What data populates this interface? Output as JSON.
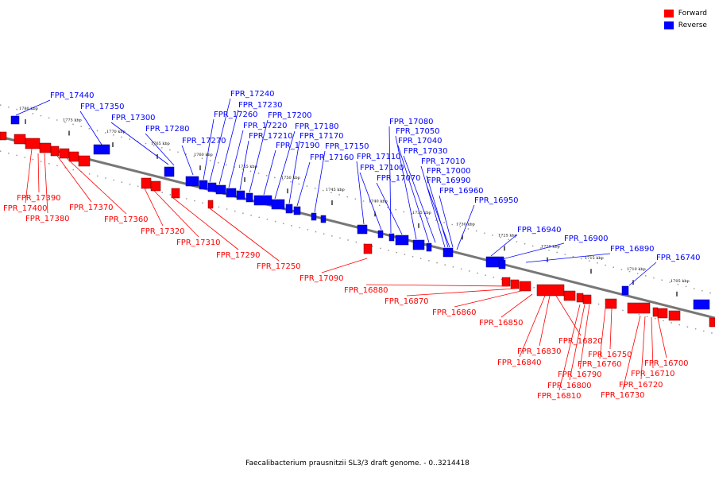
{
  "legend": {
    "forward": {
      "label": "Forward",
      "color": "#ff0000"
    },
    "reverse": {
      "label": "Reverse",
      "color": "#0000ff"
    }
  },
  "caption": "Faecalibacterium prausnitzii SL3/3 draft genome. - 0..3214418",
  "ticks": [
    {
      "label": "1780 kbp"
    },
    {
      "label": "1775 kbp"
    },
    {
      "label": "1770 kbp"
    },
    {
      "label": "1765 kbp"
    },
    {
      "label": "1760 kbp"
    },
    {
      "label": "1755 kbp"
    },
    {
      "label": "1750 kbp"
    },
    {
      "label": "1745 kbp"
    },
    {
      "label": "1740 kbp"
    },
    {
      "label": "1735 kbp"
    },
    {
      "label": "1730 kbp"
    },
    {
      "label": "1725 kbp"
    },
    {
      "label": "1720 kbp"
    },
    {
      "label": "1715 kbp"
    },
    {
      "label": "1710 kbp"
    },
    {
      "label": "1705 kbp"
    }
  ],
  "reverse_genes": [
    "FPR_17440",
    "FPR_17350",
    "FPR_17300",
    "FPR_17280",
    "FPR_17270",
    "FPR_17260",
    "FPR_17240",
    "FPR_17230",
    "FPR_17220",
    "FPR_17210",
    "FPR_17200",
    "FPR_17190",
    "FPR_17180",
    "FPR_17170",
    "FPR_17160",
    "FPR_17150",
    "FPR_17110",
    "FPR_17100",
    "FPR_17080",
    "FPR_17070",
    "FPR_17050",
    "FPR_17040",
    "FPR_17030",
    "FPR_17010",
    "FPR_17000",
    "FPR_16990",
    "FPR_16960",
    "FPR_16950",
    "FPR_16940",
    "FPR_16900",
    "FPR_16890",
    "FPR_16740"
  ],
  "forward_genes": [
    "FPR_17390",
    "FPR_17400",
    "FPR_17380",
    "FPR_17370",
    "FPR_17360",
    "FPR_17320",
    "FPR_17310",
    "FPR_17290",
    "FPR_17250",
    "FPR_17090",
    "FPR_16880",
    "FPR_16870",
    "FPR_16860",
    "FPR_16850",
    "FPR_16820",
    "FPR_16830",
    "FPR_16840",
    "FPR_16750",
    "FPR_16760",
    "FPR_16790",
    "FPR_16800",
    "FPR_16810",
    "FPR_16700",
    "FPR_16710",
    "FPR_16720",
    "FPR_16730"
  ]
}
